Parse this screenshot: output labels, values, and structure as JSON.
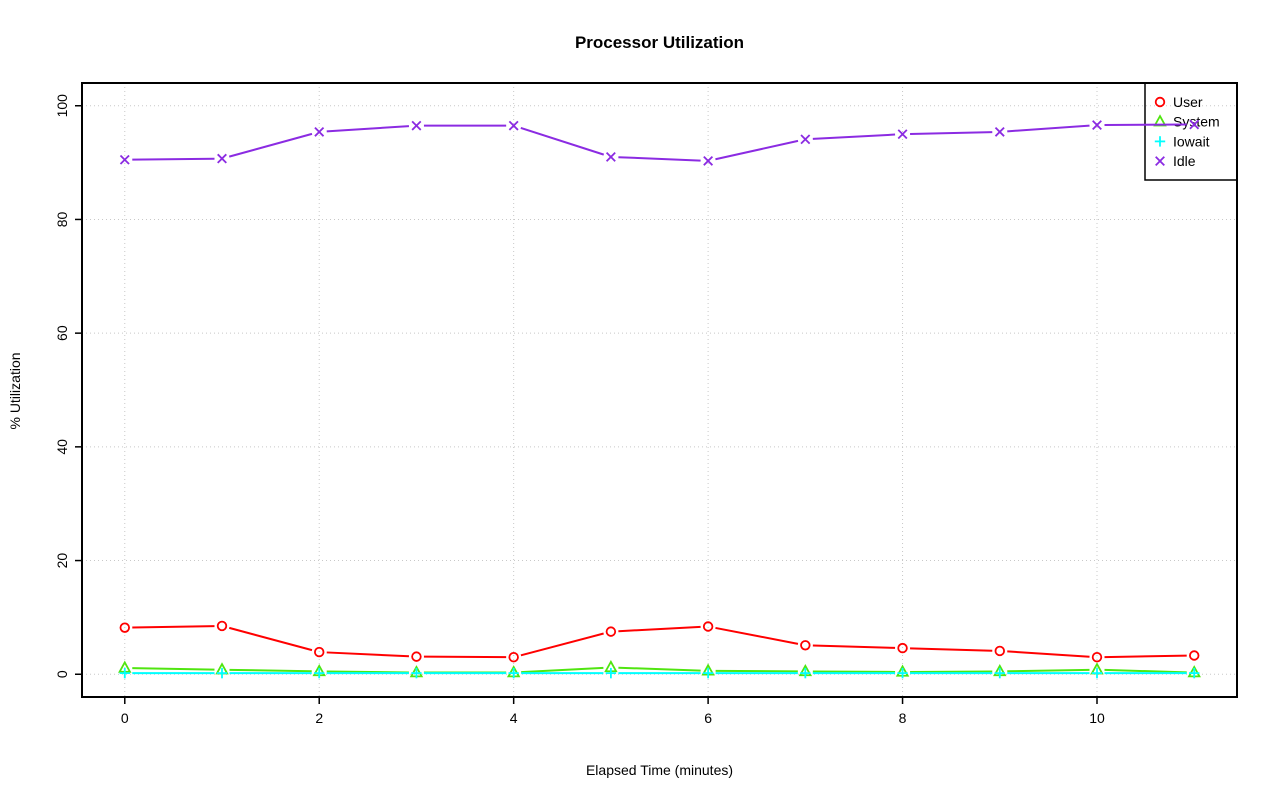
{
  "chart_data": {
    "type": "line",
    "title": "Processor Utilization",
    "xlabel": "Elapsed Time (minutes)",
    "ylabel": "% Utilization",
    "x": [
      0,
      1,
      2,
      3,
      4,
      5,
      6,
      7,
      8,
      9,
      10,
      11
    ],
    "series": [
      {
        "name": "User",
        "color": "#ff0000",
        "marker": "circle",
        "values": [
          8.2,
          8.5,
          3.9,
          3.1,
          3.0,
          7.5,
          8.4,
          5.1,
          4.6,
          4.1,
          3.0,
          3.3
        ]
      },
      {
        "name": "System",
        "color": "#50e510",
        "marker": "triangle",
        "values": [
          1.1,
          0.8,
          0.5,
          0.3,
          0.3,
          1.2,
          0.6,
          0.5,
          0.4,
          0.5,
          0.8,
          0.3
        ]
      },
      {
        "name": "Iowait",
        "color": "#00ffff",
        "marker": "plus",
        "values": [
          0.2,
          0.2,
          0.2,
          0.2,
          0.2,
          0.2,
          0.2,
          0.2,
          0.2,
          0.2,
          0.2,
          0.2
        ]
      },
      {
        "name": "Idle",
        "color": "#8b2be2",
        "marker": "x",
        "values": [
          90.5,
          90.7,
          95.4,
          96.5,
          96.5,
          91.0,
          90.3,
          94.1,
          95.0,
          95.4,
          96.6,
          96.7
        ]
      }
    ],
    "x_ticks": [
      0,
      2,
      4,
      6,
      8,
      10
    ],
    "y_ticks": [
      0,
      20,
      40,
      60,
      80,
      100
    ],
    "xlim": [
      -0.44,
      11.44
    ],
    "ylim": [
      -4,
      104
    ],
    "grid": true,
    "grid_color": "#c8c8c8",
    "legend_position": "topright",
    "axis_color": "#000000"
  }
}
